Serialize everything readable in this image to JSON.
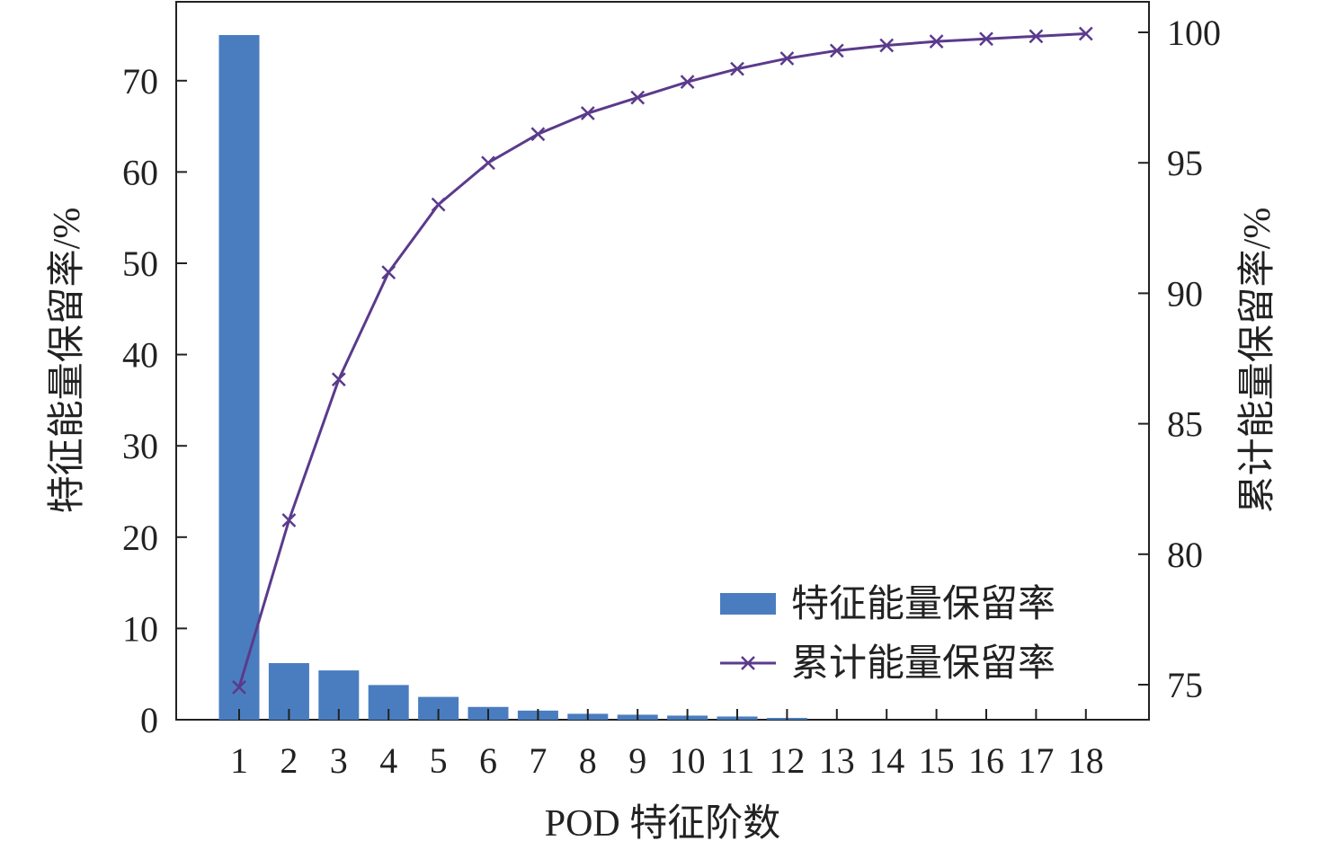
{
  "chart_data": {
    "type": "bar+line",
    "x": [
      "1",
      "2",
      "3",
      "4",
      "5",
      "6",
      "7",
      "8",
      "9",
      "10",
      "11",
      "12",
      "13",
      "14",
      "15",
      "16",
      "17",
      "18"
    ],
    "xlabel": "POD 特征阶数",
    "ylabel_left": "特征能量保留率/%",
    "ylabel_right": "累计能量保留率/%",
    "ylim_left": [
      0,
      75
    ],
    "yticks_left": [
      0,
      10,
      20,
      30,
      40,
      50,
      60,
      70
    ],
    "ylim_right": [
      74.3,
      100.6
    ],
    "yticks_right": [
      75,
      80,
      85,
      90,
      95,
      100
    ],
    "grid": false,
    "legend_position": "lower-right",
    "series": [
      {
        "name": "特征能量保留率",
        "type": "bar",
        "axis": "left",
        "color": "#4a7dbf",
        "values": [
          75.0,
          6.2,
          5.4,
          3.8,
          2.5,
          1.4,
          1.0,
          0.65,
          0.55,
          0.45,
          0.35,
          0.2,
          0.0,
          0.0,
          0.0,
          0.0,
          0.0,
          0.0
        ]
      },
      {
        "name": "累计能量保留率",
        "type": "line",
        "marker": "x",
        "axis": "right",
        "color": "#5b3a8c",
        "values": [
          74.9,
          81.3,
          86.7,
          90.8,
          93.4,
          95.0,
          96.1,
          96.9,
          97.5,
          98.1,
          98.6,
          99.0,
          99.3,
          99.5,
          99.65,
          99.75,
          99.85,
          99.95
        ]
      }
    ]
  }
}
